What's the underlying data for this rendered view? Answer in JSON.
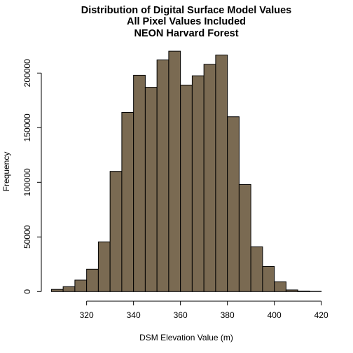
{
  "chart_data": {
    "type": "bar",
    "subtype": "histogram",
    "title": [
      "Distribution of Digital Surface Model Values",
      "All Pixel Values Included",
      "NEON Harvard Forest"
    ],
    "xlabel": "DSM Elevation Value (m)",
    "ylabel": "Frequency",
    "bar_color": "#7a6a52",
    "bar_edge_color": "#000000",
    "bin_width": 5,
    "bins": [
      {
        "start": 305,
        "end": 310,
        "count": 2000
      },
      {
        "start": 310,
        "end": 315,
        "count": 4500
      },
      {
        "start": 315,
        "end": 320,
        "count": 10500
      },
      {
        "start": 320,
        "end": 325,
        "count": 20500
      },
      {
        "start": 325,
        "end": 330,
        "count": 45500
      },
      {
        "start": 330,
        "end": 335,
        "count": 110000
      },
      {
        "start": 335,
        "end": 340,
        "count": 164000
      },
      {
        "start": 340,
        "end": 345,
        "count": 198000
      },
      {
        "start": 345,
        "end": 350,
        "count": 187000
      },
      {
        "start": 350,
        "end": 355,
        "count": 212000
      },
      {
        "start": 355,
        "end": 360,
        "count": 220000
      },
      {
        "start": 360,
        "end": 365,
        "count": 189000
      },
      {
        "start": 365,
        "end": 370,
        "count": 197500
      },
      {
        "start": 370,
        "end": 375,
        "count": 208000
      },
      {
        "start": 375,
        "end": 380,
        "count": 216500
      },
      {
        "start": 380,
        "end": 385,
        "count": 160000
      },
      {
        "start": 385,
        "end": 390,
        "count": 98000
      },
      {
        "start": 390,
        "end": 395,
        "count": 41000
      },
      {
        "start": 395,
        "end": 400,
        "count": 23000
      },
      {
        "start": 400,
        "end": 405,
        "count": 9000
      },
      {
        "start": 405,
        "end": 410,
        "count": 1500
      },
      {
        "start": 410,
        "end": 415,
        "count": 500
      },
      {
        "start": 415,
        "end": 420,
        "count": 200
      }
    ],
    "x_ticks": [
      320,
      340,
      360,
      380,
      400,
      420
    ],
    "y_ticks": [
      0,
      50000,
      100000,
      150000,
      200000
    ],
    "xlim": [
      305,
      420
    ],
    "ylim": [
      0,
      220000
    ],
    "grid": false,
    "legend": "none"
  }
}
